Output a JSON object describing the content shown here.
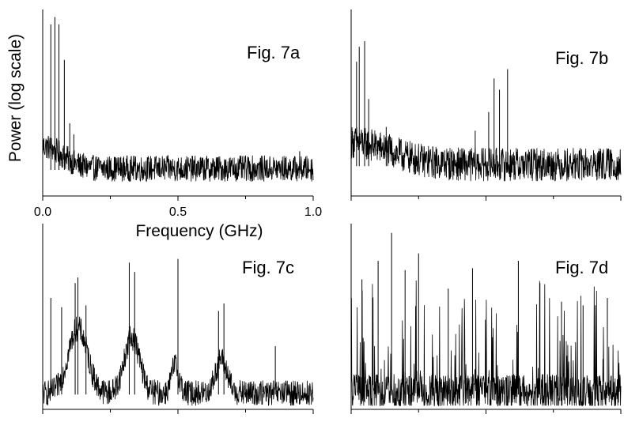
{
  "figure": {
    "ylabel": "Power (log scale)",
    "xlabel": "Frequency (GHz)"
  },
  "chart_data": [
    {
      "type": "line",
      "title": "Fig. 7a",
      "xlim": [
        0,
        1
      ],
      "xticks": [
        0,
        0.25,
        0.5,
        0.75,
        1
      ],
      "xtick_labels": [
        "0.0",
        "",
        "0.5",
        "",
        "1.0"
      ],
      "y_scale": "log",
      "noise_floor": 0.14,
      "noise_amp": 0.07,
      "low_freq_rise": {
        "center": 0,
        "width": 0.1,
        "amp": 0.12
      },
      "peaks": [
        {
          "x": 0.03,
          "y": 0.92
        },
        {
          "x": 0.045,
          "y": 0.96
        },
        {
          "x": 0.06,
          "y": 0.92
        },
        {
          "x": 0.08,
          "y": 0.73
        },
        {
          "x": 0.1,
          "y": 0.39
        },
        {
          "x": 0.115,
          "y": 0.33
        },
        {
          "x": 0.95,
          "y": 0.24
        }
      ],
      "ylim": [
        0,
        1
      ],
      "grid": false
    },
    {
      "type": "line",
      "title": "Fig. 7b",
      "xlim": [
        0,
        1
      ],
      "xticks": [
        0,
        0.25,
        0.5,
        0.75,
        1
      ],
      "xtick_labels": [],
      "y_scale": "log",
      "noise_floor": 0.16,
      "noise_amp": 0.09,
      "low_freq_rise": {
        "center": 0,
        "width": 0.2,
        "amp": 0.12
      },
      "peaks": [
        {
          "x": 0.02,
          "y": 0.72
        },
        {
          "x": 0.03,
          "y": 0.8
        },
        {
          "x": 0.05,
          "y": 0.83
        },
        {
          "x": 0.065,
          "y": 0.52
        },
        {
          "x": 0.13,
          "y": 0.37
        },
        {
          "x": 0.46,
          "y": 0.35
        },
        {
          "x": 0.51,
          "y": 0.45
        },
        {
          "x": 0.53,
          "y": 0.63
        },
        {
          "x": 0.55,
          "y": 0.57
        },
        {
          "x": 0.58,
          "y": 0.68
        }
      ],
      "ylim": [
        0,
        1
      ],
      "grid": false
    },
    {
      "type": "line",
      "title": "Fig. 7c",
      "xlim": [
        0,
        1
      ],
      "xticks": [
        0,
        0.25,
        0.5,
        0.75,
        1
      ],
      "xtick_labels": [],
      "y_scale": "log",
      "noise_floor": 0.08,
      "noise_amp": 0.07,
      "clusters": [
        {
          "center": 0.13,
          "width": 0.05,
          "amp": 0.35
        },
        {
          "center": 0.33,
          "width": 0.04,
          "amp": 0.3
        },
        {
          "center": 0.49,
          "width": 0.02,
          "amp": 0.15
        },
        {
          "center": 0.66,
          "width": 0.03,
          "amp": 0.18
        }
      ],
      "peaks": [
        {
          "x": 0.03,
          "y": 0.6
        },
        {
          "x": 0.07,
          "y": 0.55
        },
        {
          "x": 0.12,
          "y": 0.68
        },
        {
          "x": 0.13,
          "y": 0.71
        },
        {
          "x": 0.16,
          "y": 0.56
        },
        {
          "x": 0.32,
          "y": 0.79
        },
        {
          "x": 0.34,
          "y": 0.74
        },
        {
          "x": 0.5,
          "y": 0.81
        },
        {
          "x": 0.65,
          "y": 0.53
        },
        {
          "x": 0.67,
          "y": 0.57
        },
        {
          "x": 0.86,
          "y": 0.34
        }
      ],
      "ylim": [
        0,
        1
      ],
      "grid": false
    },
    {
      "type": "line",
      "title": "Fig. 7d",
      "xlim": [
        0,
        1
      ],
      "xticks": [
        0,
        0.25,
        0.5,
        0.75,
        1
      ],
      "xtick_labels": [],
      "y_scale": "log",
      "noise_floor": 0.08,
      "noise_amp": 0.1,
      "spike_density": 0.12,
      "peaks": [
        {
          "x": 0.04,
          "y": 0.7
        },
        {
          "x": 0.1,
          "y": 0.8
        },
        {
          "x": 0.15,
          "y": 0.95
        },
        {
          "x": 0.2,
          "y": 0.75
        },
        {
          "x": 0.25,
          "y": 0.84
        },
        {
          "x": 0.36,
          "y": 0.65
        },
        {
          "x": 0.45,
          "y": 0.76
        },
        {
          "x": 0.62,
          "y": 0.8
        },
        {
          "x": 0.7,
          "y": 0.68
        },
        {
          "x": 0.78,
          "y": 0.58
        },
        {
          "x": 0.86,
          "y": 0.56
        },
        {
          "x": 0.95,
          "y": 0.6
        }
      ],
      "ylim": [
        0,
        1
      ],
      "grid": false
    }
  ]
}
